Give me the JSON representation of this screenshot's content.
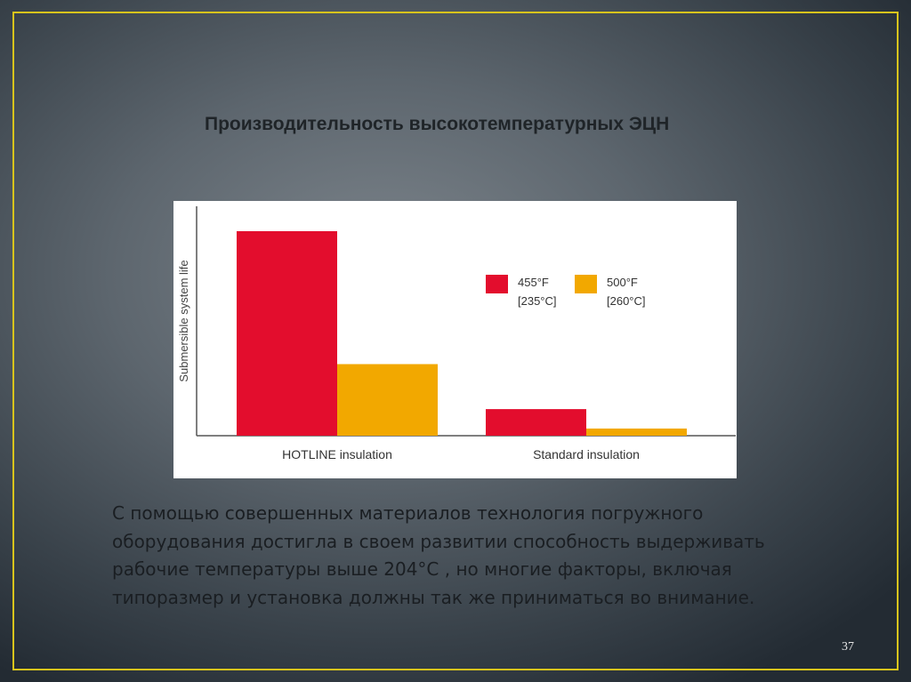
{
  "slide": {
    "title": "Производительность высокотемпературных ЭЦН",
    "body": "С помощью совершенных материалов технология погружного оборудования достигла в своем развитии способность выдерживать рабочие температуры выше 204°С , но многие факторы, включая типоразмер и установка должны так же приниматься во внимание.",
    "page_number": "37",
    "frame_color": "#d8c41c"
  },
  "chart_data": {
    "type": "bar",
    "title": "",
    "xlabel": "",
    "ylabel": "Submersible system life",
    "ylim": [
      0,
      100
    ],
    "y_ticks_shown": false,
    "grid": false,
    "legend_position": "top-right",
    "categories": [
      "HOTLINE insulation",
      "Standard insulation"
    ],
    "series": [
      {
        "name_line1": "455°F",
        "name_line2": "[235°C]",
        "color": "#e30d2d",
        "values": [
          100,
          13
        ]
      },
      {
        "name_line1": "500°F",
        "name_line2": "[260°C]",
        "color": "#f2a800",
        "values": [
          35,
          3.5
        ]
      }
    ]
  }
}
